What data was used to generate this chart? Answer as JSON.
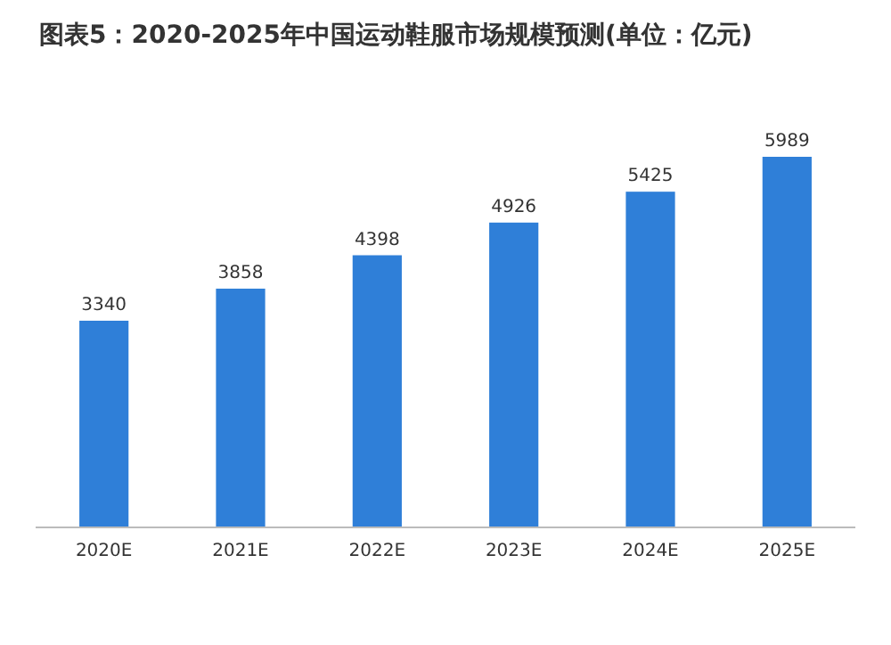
{
  "chart_data": {
    "type": "bar",
    "title": "图表5：2020-2025年中国运动鞋服市场规模预测(单位：亿元)",
    "categories": [
      "2020E",
      "2021E",
      "2022E",
      "2023E",
      "2024E",
      "2025E"
    ],
    "values": [
      3340,
      3858,
      4398,
      4926,
      5425,
      5989
    ],
    "color": "#2f7fd8",
    "data_labels": true
  }
}
